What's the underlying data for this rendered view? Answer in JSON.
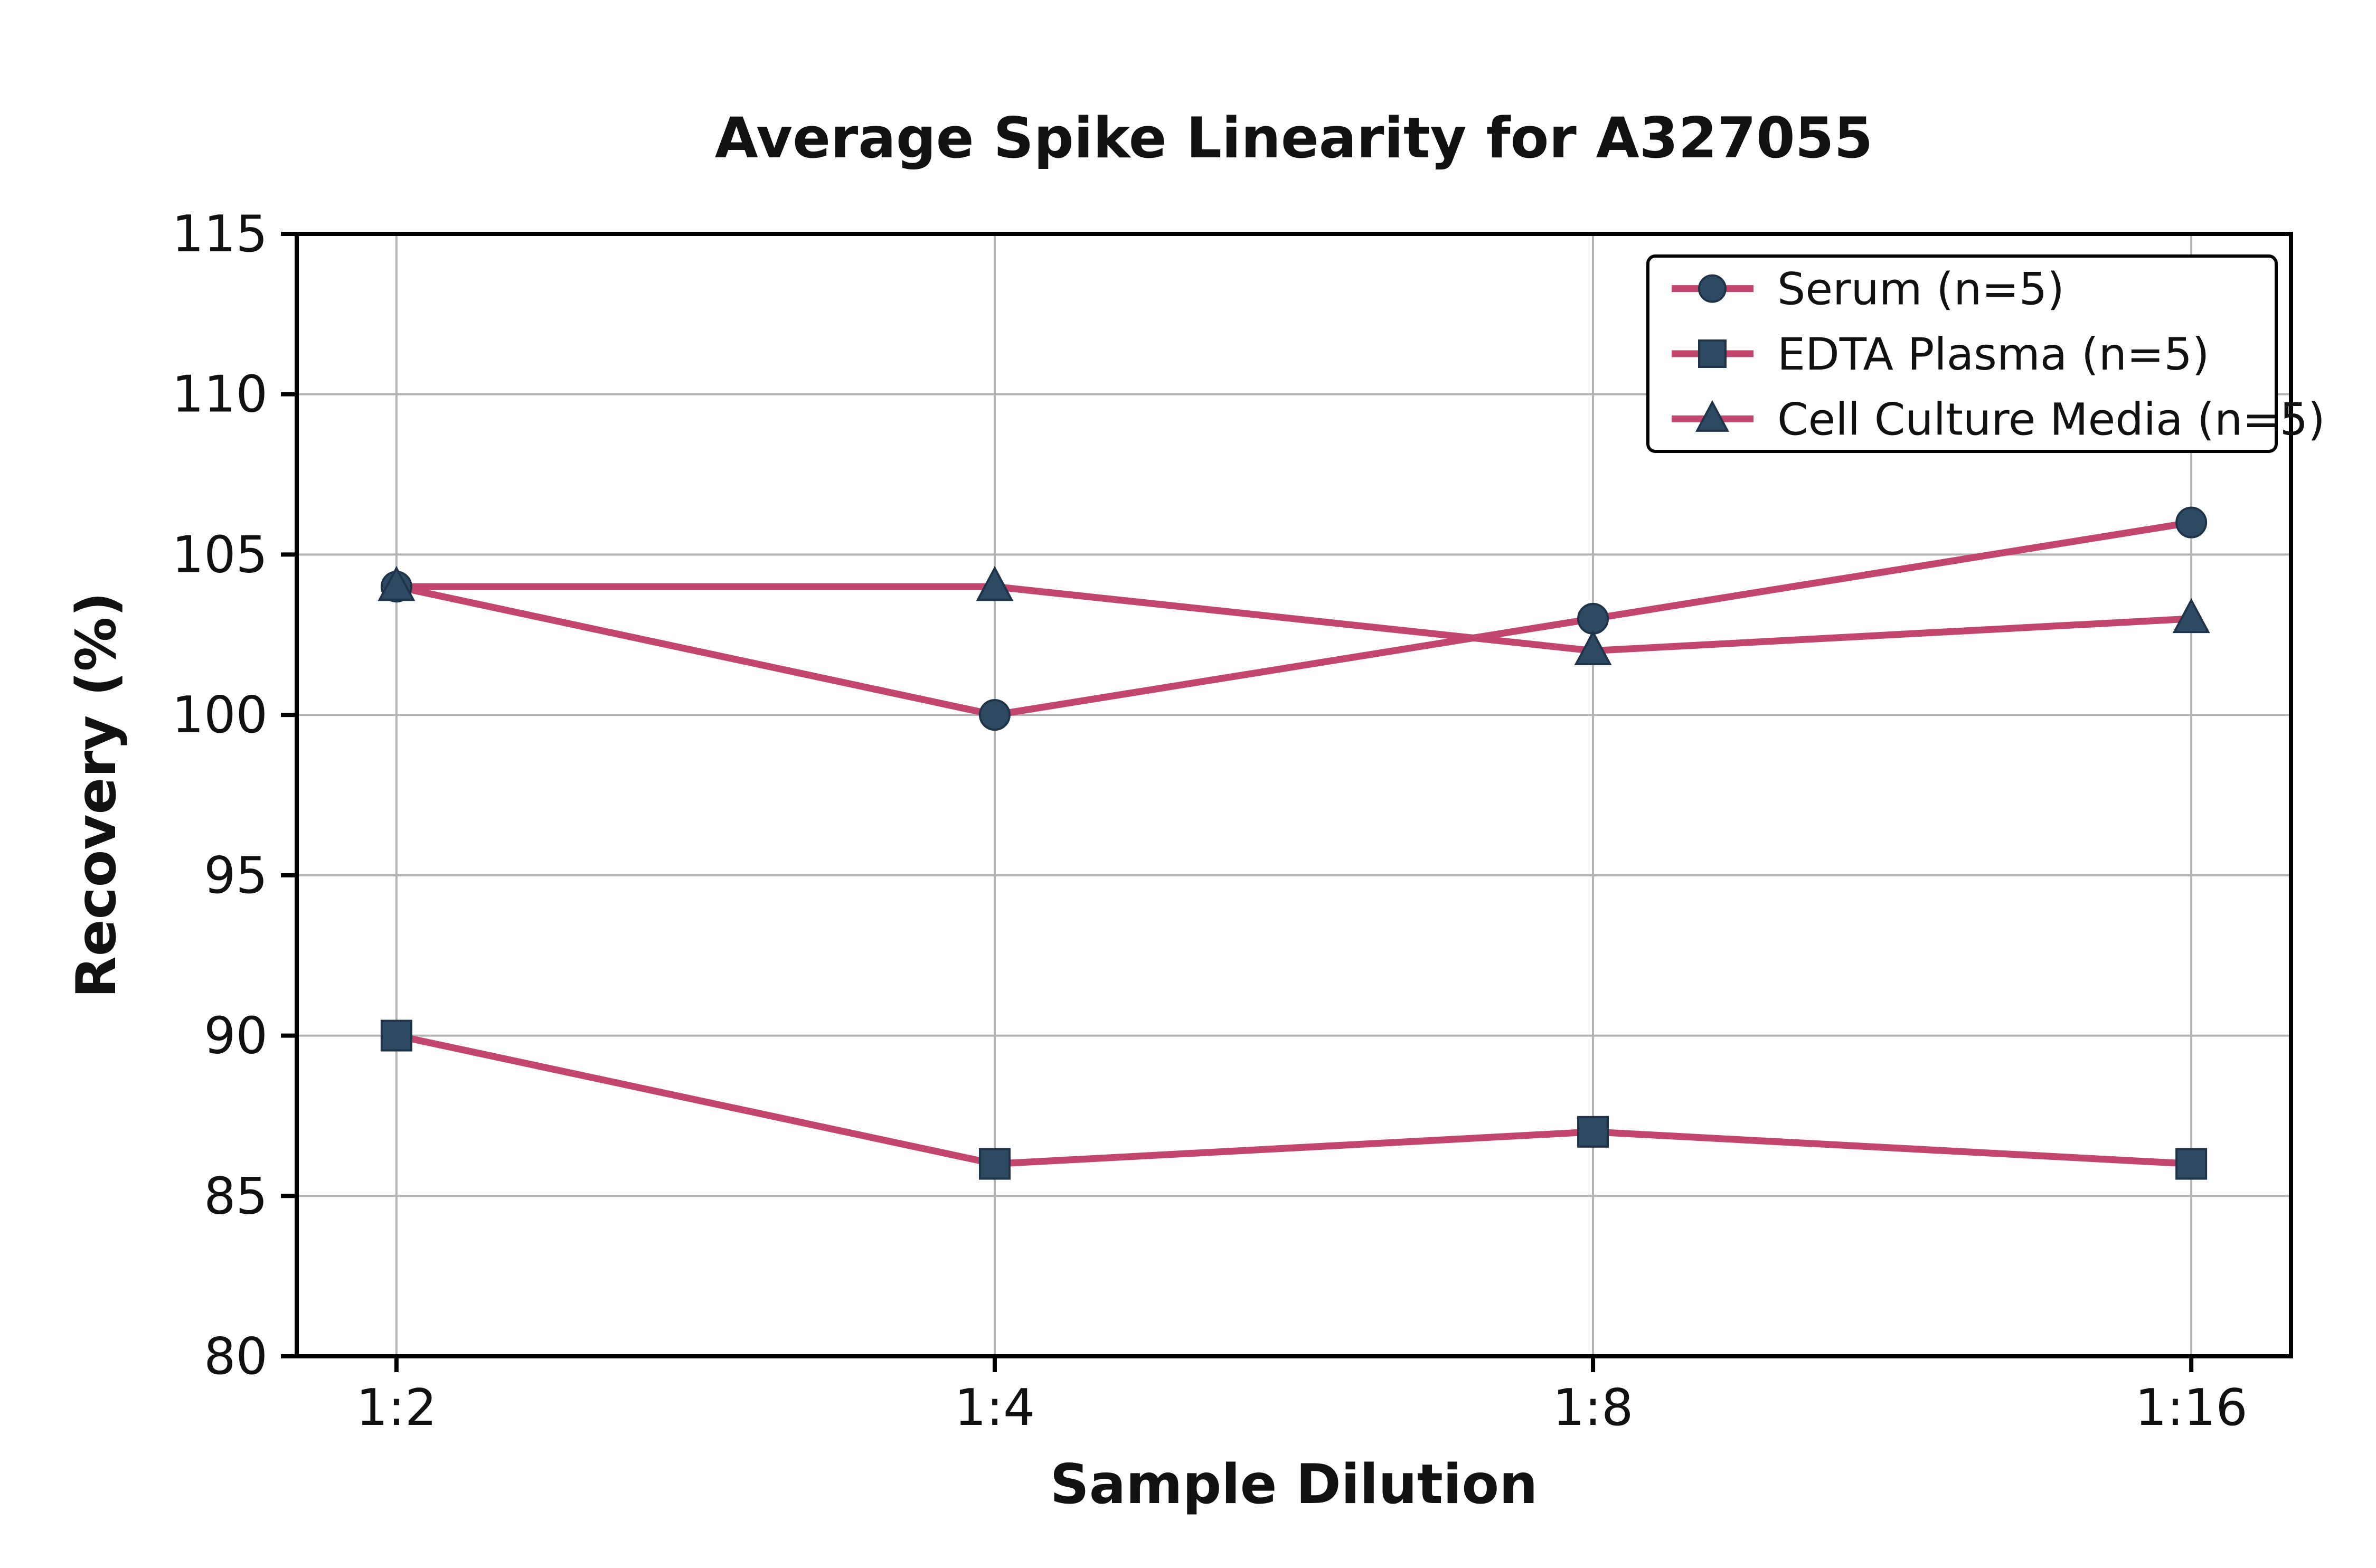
{
  "chart_data": {
    "type": "line",
    "title": "Average Spike Linearity for A327055",
    "xlabel": "Sample Dilution",
    "ylabel": "Recovery (%)",
    "categories": [
      "1:2",
      "1:4",
      "1:8",
      "1:16"
    ],
    "series": [
      {
        "name": "Serum (n=5)",
        "marker": "circle",
        "values": [
          104,
          100,
          103,
          106
        ]
      },
      {
        "name": "EDTA Plasma (n=5)",
        "marker": "square",
        "values": [
          90,
          86,
          87,
          86
        ]
      },
      {
        "name": "Cell Culture Media (n=5)",
        "marker": "triangle",
        "values": [
          104,
          104,
          102,
          103
        ]
      }
    ],
    "ylim": [
      80,
      115
    ],
    "yticks": [
      80,
      85,
      90,
      95,
      100,
      105,
      110,
      115
    ],
    "grid": true,
    "legend_position": "upper right",
    "line_color": "#c2466d",
    "marker_color": "#2e4a62",
    "marker_edge_color": "#1f3349",
    "grid_color": "#b3b3b3",
    "axis_color": "#000000",
    "background_color": "#ffffff"
  }
}
